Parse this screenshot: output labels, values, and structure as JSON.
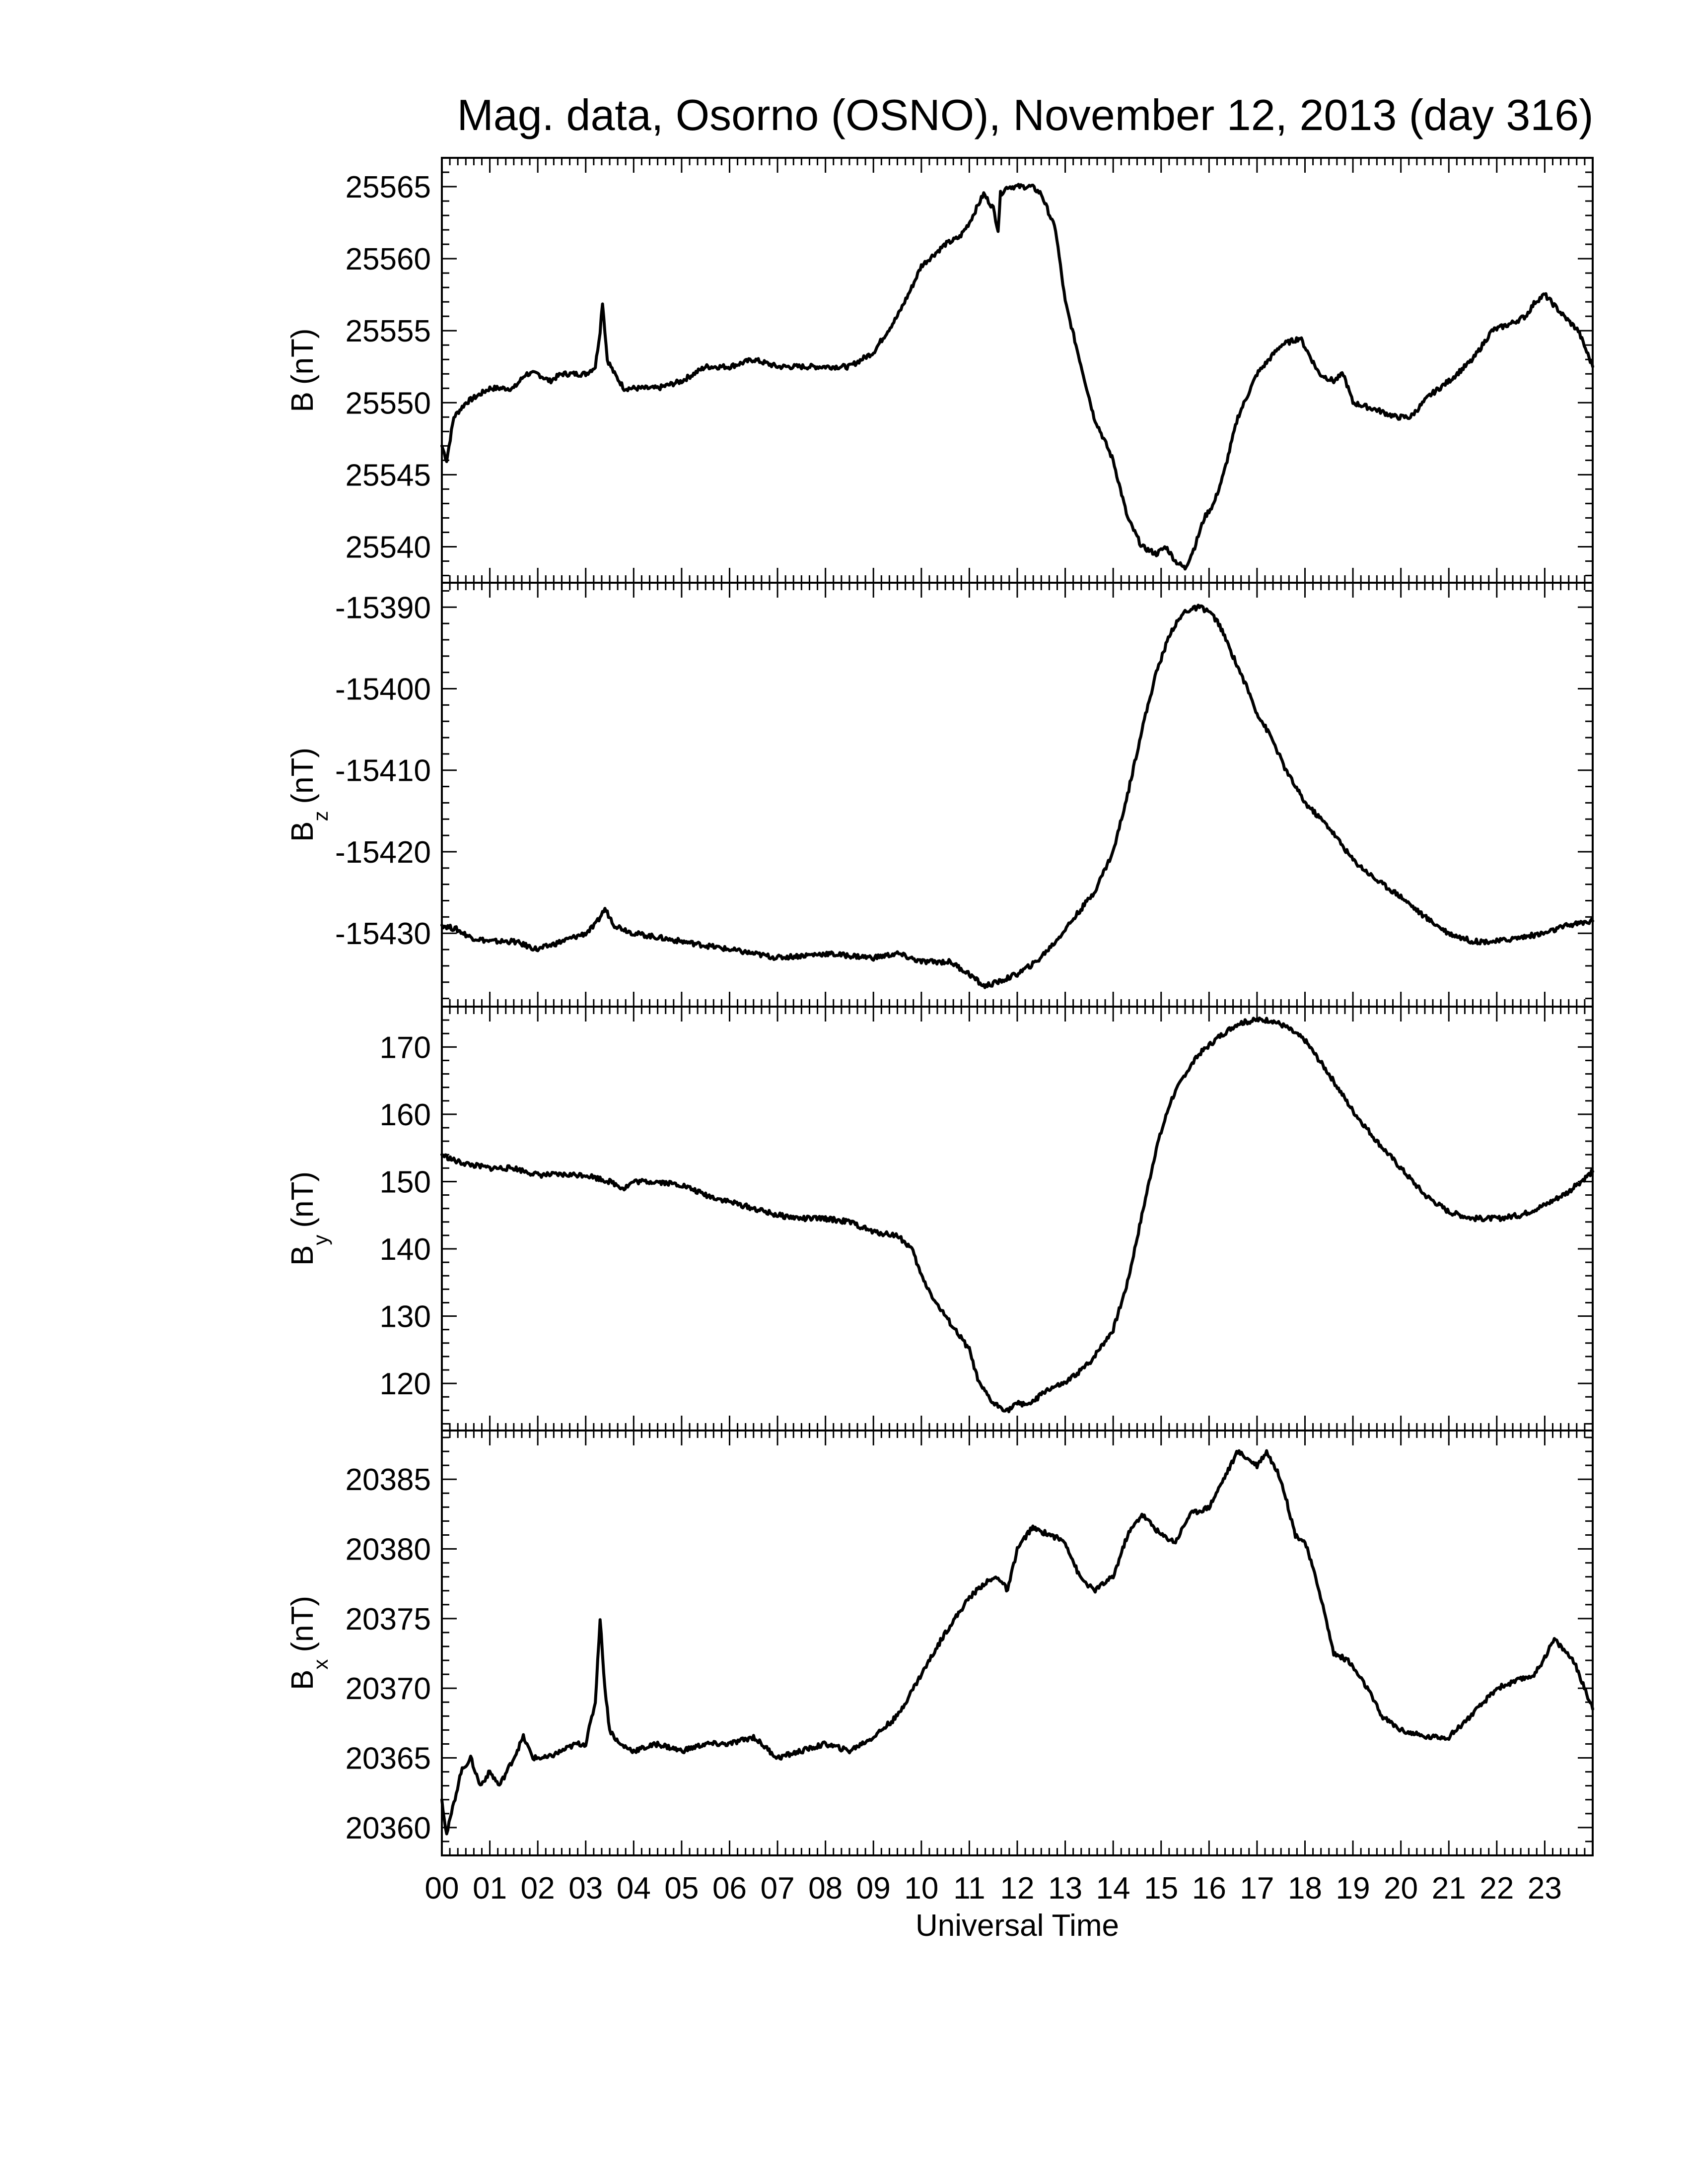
{
  "chart_data": {
    "type": "line",
    "title": "Mag. data, Osorno (OSNO), November 12, 2013 (day 316)",
    "xlabel": "Universal Time",
    "xlim": [
      0,
      24
    ],
    "x_tick_labels": [
      "00",
      "01",
      "02",
      "03",
      "04",
      "05",
      "06",
      "07",
      "08",
      "09",
      "10",
      "11",
      "12",
      "13",
      "14",
      "15",
      "16",
      "17",
      "18",
      "19",
      "20",
      "21",
      "22",
      "23"
    ],
    "panels": [
      {
        "id": "B",
        "ylabel_main": "B",
        "ylabel_sub": "",
        "ylabel_unit": "(nT)",
        "ylim": [
          25537.5,
          25567
        ],
        "yticks": [
          25540,
          25545,
          25550,
          25555,
          25560,
          25565
        ],
        "x": [
          0.0,
          0.1,
          0.25,
          0.5,
          0.75,
          1.0,
          1.25,
          1.5,
          1.75,
          2.0,
          2.25,
          2.5,
          2.75,
          3.0,
          3.2,
          3.3,
          3.35,
          3.45,
          3.6,
          3.8,
          4.0,
          4.5,
          5.0,
          5.5,
          6.0,
          6.5,
          7.0,
          7.5,
          8.0,
          8.5,
          9.0,
          9.5,
          9.8,
          10.0,
          10.5,
          10.8,
          11.0,
          11.3,
          11.5,
          11.6,
          11.65,
          11.8,
          12.0,
          12.3,
          12.5,
          12.8,
          13.0,
          13.3,
          13.6,
          14.0,
          14.3,
          14.6,
          14.9,
          15.1,
          15.3,
          15.5,
          15.7,
          15.9,
          16.1,
          16.3,
          16.6,
          17.0,
          17.5,
          17.9,
          18.3,
          18.6,
          18.8,
          19.0,
          19.5,
          19.9,
          20.2,
          20.6,
          21.0,
          21.5,
          21.9,
          22.3,
          22.6,
          22.8,
          23.0,
          23.4,
          23.7,
          24.0
        ],
        "values": [
          25547,
          25546,
          25549,
          25550,
          25550.5,
          25551,
          25551,
          25551,
          25552,
          25552,
          25551.5,
          25552,
          25552,
          25552,
          25552.5,
          25555,
          25557,
          25553,
          25552,
          25551,
          25551,
          25551,
          25551.5,
          25552.5,
          25552.5,
          25553,
          25552.5,
          25552.5,
          25552.5,
          25552.5,
          25553.5,
          25556,
          25558,
          25559.5,
          25561,
          25561.5,
          25562.5,
          25564.5,
          25563.5,
          25562,
          25564.5,
          25565,
          25565,
          25565,
          25564.5,
          25562,
          25557,
          25553,
          25549,
          25546,
          25542,
          25540,
          25539.5,
          25540,
          25539,
          25538.5,
          25540,
          25542,
          25543,
          25545,
          25549,
          25552,
          25554,
          25554.5,
          25552,
          25551.5,
          25552,
          25550,
          25549.5,
          25549,
          25549,
          25550.5,
          25551.5,
          25553,
          25555,
          25555.5,
          25556,
          25557,
          25557.5,
          25556,
          25555,
          25552.5
        ]
      },
      {
        "id": "Bz",
        "ylabel_main": "B",
        "ylabel_sub": "z",
        "ylabel_unit": "(nT)",
        "ylim": [
          -15439,
          -15387
        ],
        "yticks": [
          -15430,
          -15420,
          -15410,
          -15400,
          -15390
        ],
        "x": [
          0.0,
          0.3,
          0.6,
          1.0,
          1.5,
          2.0,
          2.5,
          3.0,
          3.2,
          3.4,
          3.6,
          4.0,
          5.0,
          6.0,
          7.0,
          8.0,
          9.0,
          9.5,
          10.0,
          10.3,
          10.6,
          11.0,
          11.3,
          11.6,
          12.0,
          12.4,
          12.8,
          13.2,
          13.6,
          14.0,
          14.3,
          14.6,
          14.9,
          15.2,
          15.5,
          15.8,
          16.0,
          16.2,
          16.5,
          16.8,
          17.0,
          17.3,
          17.6,
          18.0,
          18.5,
          19.0,
          19.5,
          20.0,
          20.5,
          21.0,
          21.5,
          22.0,
          22.5,
          23.0,
          23.5,
          24.0
        ],
        "values": [
          -15429,
          -15429.5,
          -15430.5,
          -15431,
          -15431,
          -15432,
          -15431,
          -15430,
          -15429,
          -15427,
          -15429,
          -15430,
          -15431,
          -15432,
          -15433,
          -15432.5,
          -15433,
          -15432.5,
          -15433.5,
          -15433.5,
          -15433.5,
          -15435,
          -15436.5,
          -15436,
          -15435,
          -15433.5,
          -15431,
          -15428,
          -15425,
          -15420,
          -15413,
          -15405,
          -15398,
          -15393,
          -15390.5,
          -15390,
          -15390.5,
          -15392,
          -15396,
          -15400,
          -15403,
          -15406,
          -15410,
          -15414,
          -15417,
          -15421,
          -15423.5,
          -15425.5,
          -15428,
          -15430,
          -15431,
          -15431,
          -15430.5,
          -15430,
          -15429,
          -15428.5
        ]
      },
      {
        "id": "By",
        "ylabel_main": "B",
        "ylabel_sub": "y",
        "ylabel_unit": "(nT)",
        "ylim": [
          113,
          176
        ],
        "yticks": [
          120,
          130,
          140,
          150,
          160,
          170
        ],
        "x": [
          0.0,
          0.3,
          0.6,
          1.0,
          1.5,
          2.0,
          2.5,
          3.0,
          3.5,
          3.8,
          4.0,
          4.5,
          5.0,
          5.5,
          6.0,
          6.5,
          7.0,
          7.5,
          8.0,
          8.5,
          9.0,
          9.5,
          9.8,
          10.0,
          10.3,
          10.5,
          10.8,
          11.0,
          11.2,
          11.5,
          11.8,
          12.0,
          12.3,
          12.6,
          13.0,
          13.5,
          14.0,
          14.3,
          14.6,
          14.9,
          15.2,
          15.5,
          15.8,
          16.2,
          16.6,
          17.0,
          17.3,
          17.6,
          18.0,
          18.5,
          19.0,
          19.5,
          20.0,
          20.5,
          21.0,
          21.5,
          22.0,
          22.5,
          23.0,
          23.5,
          24.0
        ],
        "values": [
          154,
          153,
          152.5,
          152,
          152,
          151,
          151,
          151,
          150,
          149,
          150,
          150,
          149.5,
          148,
          147,
          146,
          145,
          144.5,
          144.5,
          144,
          142.5,
          142,
          140,
          136,
          132,
          130,
          127,
          125,
          120,
          117,
          116,
          117,
          117,
          119,
          120,
          123,
          128,
          135,
          145,
          155,
          162,
          166,
          169,
          171.5,
          173.5,
          174,
          174,
          173,
          171,
          166,
          160.5,
          156,
          152,
          148,
          145.5,
          144.5,
          144.5,
          145,
          146.5,
          148.5,
          151.5
        ]
      },
      {
        "id": "Bx",
        "ylabel_main": "B",
        "ylabel_sub": "x",
        "ylabel_unit": "(nT)",
        "ylim": [
          20358,
          20388.5
        ],
        "yticks": [
          20360,
          20365,
          20370,
          20375,
          20380,
          20385
        ],
        "x": [
          0.0,
          0.1,
          0.2,
          0.4,
          0.6,
          0.8,
          1.0,
          1.2,
          1.5,
          1.7,
          1.9,
          2.2,
          2.5,
          2.8,
          3.0,
          3.2,
          3.3,
          3.4,
          3.5,
          3.7,
          4.0,
          4.5,
          5.0,
          5.5,
          6.0,
          6.5,
          7.0,
          7.5,
          8.0,
          8.5,
          9.0,
          9.5,
          10.0,
          10.5,
          10.8,
          11.0,
          11.3,
          11.6,
          11.8,
          12.0,
          12.3,
          12.7,
          13.0,
          13.3,
          13.6,
          14.0,
          14.3,
          14.6,
          15.0,
          15.3,
          15.6,
          16.0,
          16.3,
          16.6,
          16.8,
          17.0,
          17.2,
          17.5,
          17.8,
          18.0,
          18.3,
          18.6,
          18.9,
          19.1,
          19.3,
          19.6,
          20.0,
          20.5,
          21.0,
          21.3,
          21.6,
          22.0,
          22.4,
          22.8,
          23.2,
          23.6,
          24.0
        ],
        "values": [
          20362,
          20359.5,
          20361,
          20364,
          20365,
          20363,
          20364,
          20363,
          20365,
          20366.5,
          20365,
          20365,
          20365.5,
          20366,
          20366,
          20369,
          20375,
          20370,
          20367,
          20366,
          20365.5,
          20366,
          20365.5,
          20366,
          20366,
          20366.5,
          20365,
          20365.5,
          20366,
          20365.5,
          20366.5,
          20368,
          20371,
          20374,
          20375.5,
          20376.5,
          20377.5,
          20378,
          20377,
          20380,
          20381.5,
          20381,
          20380.5,
          20378,
          20377,
          20378,
          20381,
          20382.5,
          20381,
          20380.5,
          20382.5,
          20383,
          20385,
          20387,
          20386.5,
          20386,
          20387,
          20385,
          20381,
          20380.5,
          20377,
          20372.5,
          20372,
          20371,
          20370,
          20368,
          20367,
          20366.5,
          20366.5,
          20367.5,
          20368.5,
          20370,
          20370.5,
          20371,
          20373.5,
          20372,
          20368.5
        ]
      }
    ]
  }
}
